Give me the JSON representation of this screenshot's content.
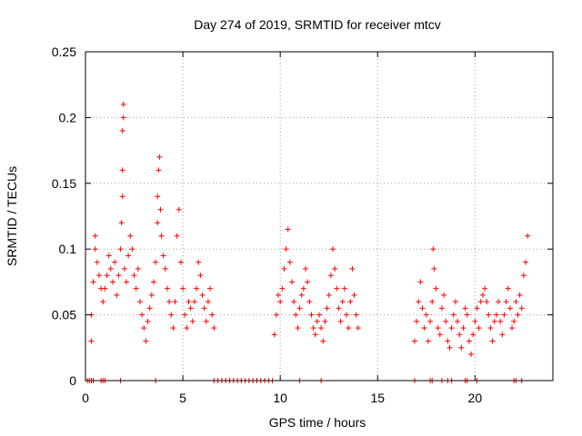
{
  "chart_data": {
    "type": "scatter",
    "title": "Day 274 of 2019, SRMTID for receiver mtcv",
    "xlabel": "GPS time / hours",
    "ylabel": "SRMTID / TECUs",
    "xlim": [
      0,
      24
    ],
    "ylim": [
      0,
      0.25
    ],
    "grid": true,
    "marker": "+",
    "color": "#ff0000",
    "x_ticks": [
      0,
      5,
      10,
      15,
      20
    ],
    "x_tick_labels": [
      "0",
      "5",
      "10",
      "15",
      "20"
    ],
    "y_ticks": [
      0,
      0.05,
      0.1,
      0.15,
      0.2,
      0.25
    ],
    "y_tick_labels": [
      "0",
      "0.05",
      "0.1",
      "0.15",
      "0.2",
      "0.25"
    ],
    "series": [
      {
        "name": "SRMTID",
        "points": [
          [
            0.3,
            0.03
          ],
          [
            0.3,
            0.05
          ],
          [
            0.4,
            0.075
          ],
          [
            0.5,
            0.1
          ],
          [
            0.5,
            0.11
          ],
          [
            0.6,
            0.09
          ],
          [
            0.7,
            0.08
          ],
          [
            0.8,
            0.07
          ],
          [
            0.9,
            0.06
          ],
          [
            1.0,
            0.07
          ],
          [
            1.1,
            0.08
          ],
          [
            1.2,
            0.095
          ],
          [
            1.3,
            0.085
          ],
          [
            1.4,
            0.075
          ],
          [
            1.5,
            0.09
          ],
          [
            1.6,
            0.065
          ],
          [
            1.7,
            0.08
          ],
          [
            1.8,
            0.1
          ],
          [
            1.85,
            0.12
          ],
          [
            1.9,
            0.14
          ],
          [
            1.9,
            0.16
          ],
          [
            1.9,
            0.19
          ],
          [
            1.95,
            0.2
          ],
          [
            1.95,
            0.21
          ],
          [
            2.0,
            0.085
          ],
          [
            2.1,
            0.075
          ],
          [
            2.2,
            0.095
          ],
          [
            2.3,
            0.11
          ],
          [
            2.4,
            0.1
          ],
          [
            2.5,
            0.08
          ],
          [
            2.6,
            0.07
          ],
          [
            2.7,
            0.085
          ],
          [
            2.8,
            0.06
          ],
          [
            2.9,
            0.05
          ],
          [
            3.0,
            0.04
          ],
          [
            3.1,
            0.03
          ],
          [
            3.2,
            0.045
          ],
          [
            3.3,
            0.055
          ],
          [
            3.4,
            0.065
          ],
          [
            3.5,
            0.075
          ],
          [
            3.6,
            0.09
          ],
          [
            3.7,
            0.12
          ],
          [
            3.7,
            0.14
          ],
          [
            3.75,
            0.16
          ],
          [
            3.8,
            0.17
          ],
          [
            3.85,
            0.13
          ],
          [
            3.9,
            0.11
          ],
          [
            4.0,
            0.095
          ],
          [
            4.1,
            0.085
          ],
          [
            4.2,
            0.07
          ],
          [
            4.3,
            0.06
          ],
          [
            4.4,
            0.05
          ],
          [
            4.5,
            0.04
          ],
          [
            4.6,
            0.06
          ],
          [
            4.7,
            0.11
          ],
          [
            4.8,
            0.13
          ],
          [
            4.9,
            0.09
          ],
          [
            5.0,
            0.07
          ],
          [
            5.1,
            0.05
          ],
          [
            5.2,
            0.04
          ],
          [
            5.3,
            0.06
          ],
          [
            5.4,
            0.055
          ],
          [
            5.5,
            0.045
          ],
          [
            5.6,
            0.06
          ],
          [
            5.7,
            0.07
          ],
          [
            5.8,
            0.09
          ],
          [
            5.9,
            0.08
          ],
          [
            6.0,
            0.065
          ],
          [
            6.1,
            0.055
          ],
          [
            6.2,
            0.045
          ],
          [
            6.3,
            0.06
          ],
          [
            6.4,
            0.07
          ],
          [
            6.5,
            0.05
          ],
          [
            6.6,
            0.04
          ],
          [
            9.7,
            0.035
          ],
          [
            9.8,
            0.05
          ],
          [
            9.9,
            0.065
          ],
          [
            10.0,
            0.06
          ],
          [
            10.1,
            0.07
          ],
          [
            10.2,
            0.085
          ],
          [
            10.3,
            0.1
          ],
          [
            10.4,
            0.115
          ],
          [
            10.5,
            0.09
          ],
          [
            10.6,
            0.075
          ],
          [
            10.7,
            0.06
          ],
          [
            10.8,
            0.05
          ],
          [
            10.9,
            0.04
          ],
          [
            11.0,
            0.055
          ],
          [
            11.1,
            0.065
          ],
          [
            11.2,
            0.07
          ],
          [
            11.3,
            0.085
          ],
          [
            11.4,
            0.075
          ],
          [
            11.5,
            0.06
          ],
          [
            11.6,
            0.05
          ],
          [
            11.7,
            0.04
          ],
          [
            11.8,
            0.035
          ],
          [
            11.9,
            0.045
          ],
          [
            12.0,
            0.05
          ],
          [
            12.1,
            0.04
          ],
          [
            12.2,
            0.03
          ],
          [
            12.3,
            0.045
          ],
          [
            12.4,
            0.055
          ],
          [
            12.5,
            0.065
          ],
          [
            12.6,
            0.08
          ],
          [
            12.7,
            0.1
          ],
          [
            12.8,
            0.085
          ],
          [
            12.9,
            0.07
          ],
          [
            13.0,
            0.055
          ],
          [
            13.1,
            0.045
          ],
          [
            13.2,
            0.06
          ],
          [
            13.3,
            0.07
          ],
          [
            13.4,
            0.05
          ],
          [
            13.5,
            0.04
          ],
          [
            13.6,
            0.06
          ],
          [
            13.7,
            0.085
          ],
          [
            13.8,
            0.065
          ],
          [
            13.9,
            0.05
          ],
          [
            14.0,
            0.04
          ],
          [
            16.9,
            0.03
          ],
          [
            17.0,
            0.045
          ],
          [
            17.1,
            0.06
          ],
          [
            17.2,
            0.075
          ],
          [
            17.3,
            0.055
          ],
          [
            17.4,
            0.04
          ],
          [
            17.5,
            0.05
          ],
          [
            17.6,
            0.03
          ],
          [
            17.7,
            0.045
          ],
          [
            17.8,
            0.06
          ],
          [
            17.85,
            0.1
          ],
          [
            17.9,
            0.085
          ],
          [
            18.0,
            0.07
          ],
          [
            18.1,
            0.04
          ],
          [
            18.2,
            0.035
          ],
          [
            18.3,
            0.055
          ],
          [
            18.4,
            0.065
          ],
          [
            18.5,
            0.045
          ],
          [
            18.6,
            0.03
          ],
          [
            18.7,
            0.025
          ],
          [
            18.8,
            0.04
          ],
          [
            18.9,
            0.05
          ],
          [
            19.0,
            0.06
          ],
          [
            19.1,
            0.045
          ],
          [
            19.2,
            0.035
          ],
          [
            19.3,
            0.025
          ],
          [
            19.4,
            0.04
          ],
          [
            19.5,
            0.055
          ],
          [
            19.6,
            0.05
          ],
          [
            19.7,
            0.03
          ],
          [
            19.8,
            0.02
          ],
          [
            19.9,
            0.035
          ],
          [
            20.0,
            0.045
          ],
          [
            20.1,
            0.055
          ],
          [
            20.2,
            0.04
          ],
          [
            20.3,
            0.06
          ],
          [
            20.4,
            0.065
          ],
          [
            20.5,
            0.07
          ],
          [
            20.6,
            0.06
          ],
          [
            20.7,
            0.05
          ],
          [
            20.8,
            0.04
          ],
          [
            20.9,
            0.03
          ],
          [
            21.0,
            0.045
          ],
          [
            21.1,
            0.05
          ],
          [
            21.2,
            0.06
          ],
          [
            21.3,
            0.045
          ],
          [
            21.4,
            0.035
          ],
          [
            21.5,
            0.05
          ],
          [
            21.6,
            0.06
          ],
          [
            21.7,
            0.07
          ],
          [
            21.8,
            0.055
          ],
          [
            21.9,
            0.04
          ],
          [
            22.0,
            0.045
          ],
          [
            22.1,
            0.06
          ],
          [
            22.2,
            0.05
          ],
          [
            22.3,
            0.065
          ],
          [
            22.4,
            0.055
          ],
          [
            22.5,
            0.08
          ],
          [
            22.6,
            0.09
          ],
          [
            22.7,
            0.11
          ],
          [
            0.1,
            0.0
          ],
          [
            0.2,
            0.0
          ],
          [
            0.3,
            0.0
          ],
          [
            0.4,
            0.0
          ],
          [
            0.8,
            0.0
          ],
          [
            0.9,
            0.0
          ],
          [
            1.0,
            0.0
          ],
          [
            1.8,
            0.0
          ],
          [
            3.6,
            0.0
          ],
          [
            6.6,
            0.0
          ],
          [
            6.8,
            0.0
          ],
          [
            7.0,
            0.0
          ],
          [
            7.2,
            0.0
          ],
          [
            7.4,
            0.0
          ],
          [
            7.6,
            0.0
          ],
          [
            7.8,
            0.0
          ],
          [
            8.0,
            0.0
          ],
          [
            8.2,
            0.0
          ],
          [
            8.4,
            0.0
          ],
          [
            8.6,
            0.0
          ],
          [
            8.8,
            0.0
          ],
          [
            9.0,
            0.0
          ],
          [
            9.2,
            0.0
          ],
          [
            9.4,
            0.0
          ],
          [
            9.6,
            0.0
          ],
          [
            11.0,
            0.0
          ],
          [
            12.1,
            0.0
          ],
          [
            16.9,
            0.0
          ],
          [
            17.7,
            0.0
          ],
          [
            17.8,
            0.0
          ],
          [
            18.3,
            0.0
          ],
          [
            18.6,
            0.0
          ],
          [
            18.8,
            0.0
          ],
          [
            19.5,
            0.0
          ],
          [
            19.6,
            0.0
          ],
          [
            20.1,
            0.0
          ],
          [
            22.0,
            0.0
          ],
          [
            22.1,
            0.0
          ],
          [
            22.4,
            0.0
          ]
        ]
      }
    ]
  }
}
